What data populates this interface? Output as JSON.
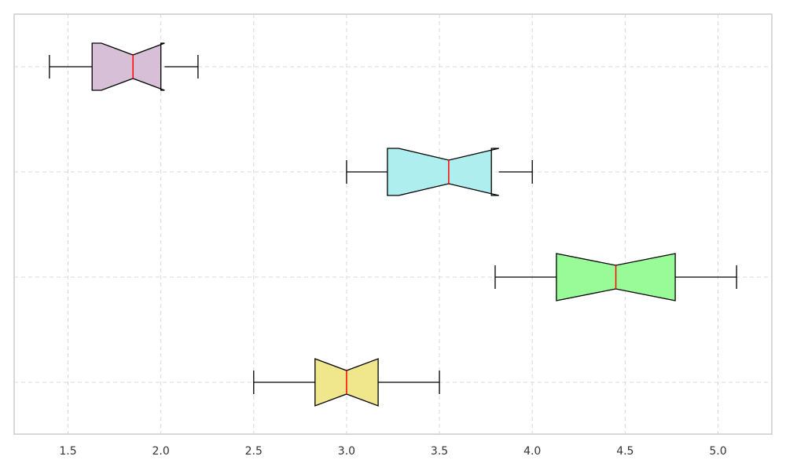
{
  "chart_data": {
    "type": "boxplot",
    "orientation": "horizontal",
    "notched": true,
    "xlim": [
      1.21,
      5.29
    ],
    "x_ticks": [
      1.5,
      2.0,
      2.5,
      3.0,
      3.5,
      4.0,
      4.5,
      5.0
    ],
    "x_tick_labels": [
      "1.5",
      "2.0",
      "2.5",
      "3.0",
      "3.5",
      "4.0",
      "4.5",
      "5.0"
    ],
    "grid": true,
    "grid_style": "dashed",
    "median_color": "#ff0000",
    "boxes": [
      {
        "whisker_low": 1.4,
        "q1": 1.63,
        "notch_low": 1.68,
        "median": 1.85,
        "notch_high": 2.02,
        "q3": 2.0,
        "whisker_high": 2.2,
        "color": "#d8bfd8"
      },
      {
        "whisker_low": 3.0,
        "q1": 3.22,
        "notch_low": 3.28,
        "median": 3.55,
        "notch_high": 3.82,
        "q3": 3.78,
        "whisker_high": 4.0,
        "color": "#afeeee"
      },
      {
        "whisker_low": 3.8,
        "q1": 4.13,
        "notch_low": 4.13,
        "median": 4.45,
        "notch_high": 4.77,
        "q3": 4.77,
        "whisker_high": 5.1,
        "color": "#98fb98"
      },
      {
        "whisker_low": 2.5,
        "q1": 2.83,
        "notch_low": 2.83,
        "median": 3.0,
        "notch_high": 3.17,
        "q3": 3.17,
        "whisker_high": 3.5,
        "color": "#f0e68c"
      }
    ]
  }
}
